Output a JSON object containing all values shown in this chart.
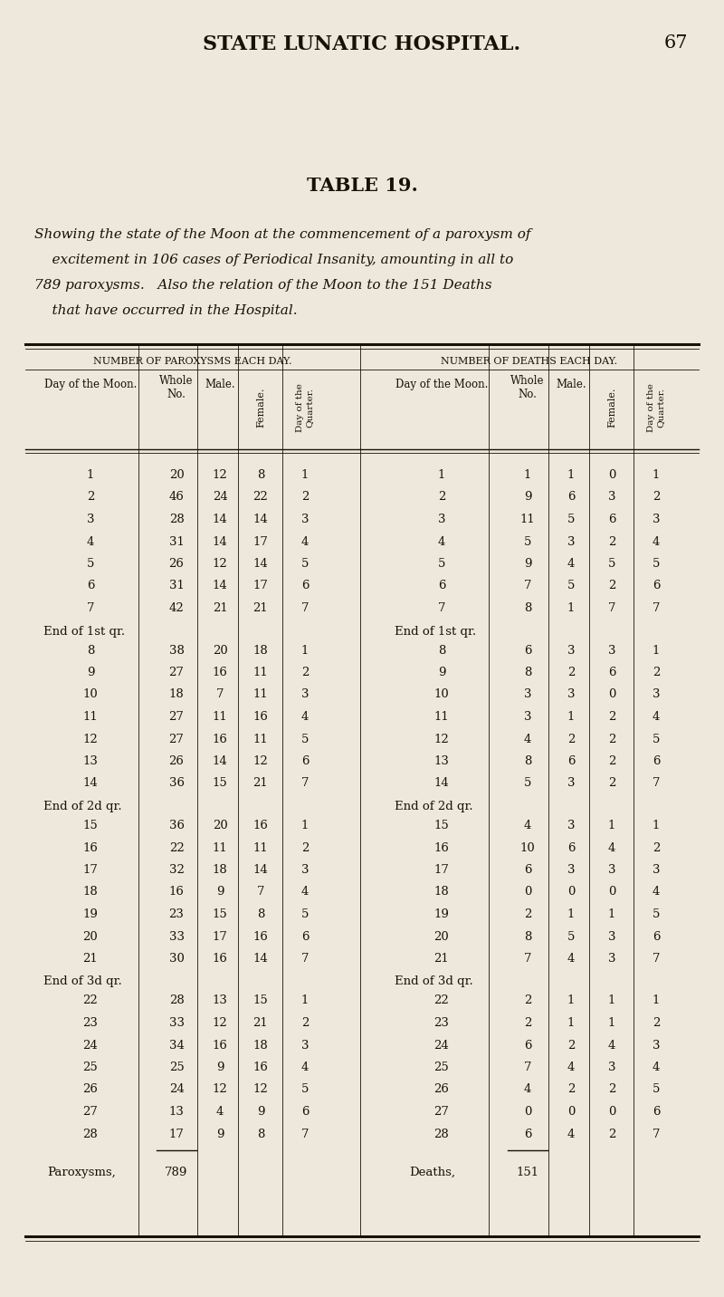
{
  "page_header": "STATE LUNATIC HOSPITAL.",
  "page_number": "67",
  "table_title": "TABLE 19.",
  "table_subtitle_lines": [
    "Showing the state of the Moon at the commencement of a paroxysm of",
    "    excitement in 106 cases of Periodical Insanity, amounting in all to",
    "789 paroxysms.   Also the relation of the Moon to the 151 Deaths",
    "    that have occurred in the Hospital."
  ],
  "left_section_header": "Number of Paroxysms each Day.",
  "right_section_header": "Number of Deaths each Day.",
  "paroxysms": [
    {
      "day": "1",
      "whole": "20",
      "male": "12",
      "female": "8",
      "quarter": "1"
    },
    {
      "day": "2",
      "whole": "46",
      "male": "24",
      "female": "22",
      "quarter": "2"
    },
    {
      "day": "3",
      "whole": "28",
      "male": "14",
      "female": "14",
      "quarter": "3"
    },
    {
      "day": "4",
      "whole": "31",
      "male": "14",
      "female": "17",
      "quarter": "4"
    },
    {
      "day": "5",
      "whole": "26",
      "male": "12",
      "female": "14",
      "quarter": "5"
    },
    {
      "day": "6",
      "whole": "31",
      "male": "14",
      "female": "17",
      "quarter": "6"
    },
    {
      "day": "7",
      "whole": "42",
      "male": "21",
      "female": "21",
      "quarter": "7"
    },
    {
      "day": "End of 1st qr.",
      "whole": "",
      "male": "",
      "female": "",
      "quarter": ""
    },
    {
      "day": "8",
      "whole": "38",
      "male": "20",
      "female": "18",
      "quarter": "1"
    },
    {
      "day": "9",
      "whole": "27",
      "male": "16",
      "female": "11",
      "quarter": "2"
    },
    {
      "day": "10",
      "whole": "18",
      "male": "7",
      "female": "11",
      "quarter": "3"
    },
    {
      "day": "11",
      "whole": "27",
      "male": "11",
      "female": "16",
      "quarter": "4"
    },
    {
      "day": "12",
      "whole": "27",
      "male": "16",
      "female": "11",
      "quarter": "5"
    },
    {
      "day": "13",
      "whole": "26",
      "male": "14",
      "female": "12",
      "quarter": "6"
    },
    {
      "day": "14",
      "whole": "36",
      "male": "15",
      "female": "21",
      "quarter": "7"
    },
    {
      "day": "End of 2d qr.",
      "whole": "",
      "male": "",
      "female": "",
      "quarter": ""
    },
    {
      "day": "15",
      "whole": "36",
      "male": "20",
      "female": "16",
      "quarter": "1"
    },
    {
      "day": "16",
      "whole": "22",
      "male": "11",
      "female": "11",
      "quarter": "2"
    },
    {
      "day": "17",
      "whole": "32",
      "male": "18",
      "female": "14",
      "quarter": "3"
    },
    {
      "day": "18",
      "whole": "16",
      "male": "9",
      "female": "7",
      "quarter": "4"
    },
    {
      "day": "19",
      "whole": "23",
      "male": "15",
      "female": "8",
      "quarter": "5"
    },
    {
      "day": "20",
      "whole": "33",
      "male": "17",
      "female": "16",
      "quarter": "6"
    },
    {
      "day": "21",
      "whole": "30",
      "male": "16",
      "female": "14",
      "quarter": "7"
    },
    {
      "day": "End of 3d qr.",
      "whole": "",
      "male": "",
      "female": "",
      "quarter": ""
    },
    {
      "day": "22",
      "whole": "28",
      "male": "13",
      "female": "15",
      "quarter": "1"
    },
    {
      "day": "23",
      "whole": "33",
      "male": "12",
      "female": "21",
      "quarter": "2"
    },
    {
      "day": "24",
      "whole": "34",
      "male": "16",
      "female": "18",
      "quarter": "3"
    },
    {
      "day": "25",
      "whole": "25",
      "male": "9",
      "female": "16",
      "quarter": "4"
    },
    {
      "day": "26",
      "whole": "24",
      "male": "12",
      "female": "12",
      "quarter": "5"
    },
    {
      "day": "27",
      "whole": "13",
      "male": "4",
      "female": "9",
      "quarter": "6"
    },
    {
      "day": "28",
      "whole": "17",
      "male": "9",
      "female": "8",
      "quarter": "7"
    }
  ],
  "paroxysms_total": "789",
  "deaths": [
    {
      "day": "1",
      "whole": "1",
      "male": "1",
      "female": "0",
      "quarter": "1"
    },
    {
      "day": "2",
      "whole": "9",
      "male": "6",
      "female": "3",
      "quarter": "2"
    },
    {
      "day": "3",
      "whole": "11",
      "male": "5",
      "female": "6",
      "quarter": "3"
    },
    {
      "day": "4",
      "whole": "5",
      "male": "3",
      "female": "2",
      "quarter": "4"
    },
    {
      "day": "5",
      "whole": "9",
      "male": "4",
      "female": "5",
      "quarter": "5"
    },
    {
      "day": "6",
      "whole": "7",
      "male": "5",
      "female": "2",
      "quarter": "6"
    },
    {
      "day": "7",
      "whole": "8",
      "male": "1",
      "female": "7",
      "quarter": "7"
    },
    {
      "day": "End of 1st qr.",
      "whole": "",
      "male": "",
      "female": "",
      "quarter": ""
    },
    {
      "day": "8",
      "whole": "6",
      "male": "3",
      "female": "3",
      "quarter": "1"
    },
    {
      "day": "9",
      "whole": "8",
      "male": "2",
      "female": "6",
      "quarter": "2"
    },
    {
      "day": "10",
      "whole": "3",
      "male": "3",
      "female": "0",
      "quarter": "3"
    },
    {
      "day": "11",
      "whole": "3",
      "male": "1",
      "female": "2",
      "quarter": "4"
    },
    {
      "day": "12",
      "whole": "4",
      "male": "2",
      "female": "2",
      "quarter": "5"
    },
    {
      "day": "13",
      "whole": "8",
      "male": "6",
      "female": "2",
      "quarter": "6"
    },
    {
      "day": "14",
      "whole": "5",
      "male": "3",
      "female": "2",
      "quarter": "7"
    },
    {
      "day": "End of 2d qr.",
      "whole": "",
      "male": "",
      "female": "",
      "quarter": ""
    },
    {
      "day": "15",
      "whole": "4",
      "male": "3",
      "female": "1",
      "quarter": "1"
    },
    {
      "day": "16",
      "whole": "10",
      "male": "6",
      "female": "4",
      "quarter": "2"
    },
    {
      "day": "17",
      "whole": "6",
      "male": "3",
      "female": "3",
      "quarter": "3"
    },
    {
      "day": "18",
      "whole": "0",
      "male": "0",
      "female": "0",
      "quarter": "4"
    },
    {
      "day": "19",
      "whole": "2",
      "male": "1",
      "female": "1",
      "quarter": "5"
    },
    {
      "day": "20",
      "whole": "8",
      "male": "5",
      "female": "3",
      "quarter": "6"
    },
    {
      "day": "21",
      "whole": "7",
      "male": "4",
      "female": "3",
      "quarter": "7"
    },
    {
      "day": "End of 3d qr.",
      "whole": "",
      "male": "",
      "female": "",
      "quarter": ""
    },
    {
      "day": "22",
      "whole": "2",
      "male": "1",
      "female": "1",
      "quarter": "1"
    },
    {
      "day": "23",
      "whole": "2",
      "male": "1",
      "female": "1",
      "quarter": "2"
    },
    {
      "day": "24",
      "whole": "6",
      "male": "2",
      "female": "4",
      "quarter": "3"
    },
    {
      "day": "25",
      "whole": "7",
      "male": "4",
      "female": "3",
      "quarter": "4"
    },
    {
      "day": "26",
      "whole": "4",
      "male": "2",
      "female": "2",
      "quarter": "5"
    },
    {
      "day": "27",
      "whole": "0",
      "male": "0",
      "female": "0",
      "quarter": "6"
    },
    {
      "day": "28",
      "whole": "6",
      "male": "4",
      "female": "2",
      "quarter": "7"
    }
  ],
  "deaths_total": "151",
  "bg_color": "#ede8db",
  "text_color": "#1a1005"
}
